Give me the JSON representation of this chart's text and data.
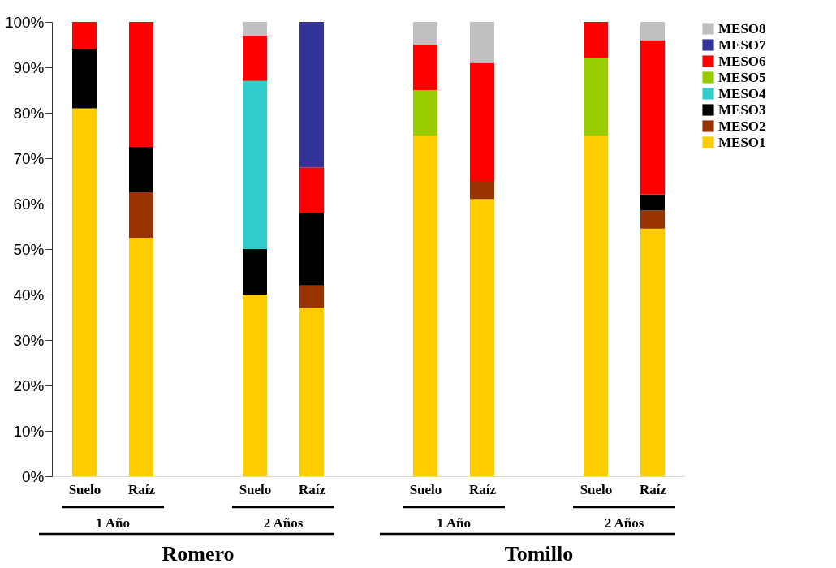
{
  "chart_data": {
    "type": "bar",
    "stacked": true,
    "categories": [
      "Suelo",
      "Raíz",
      null,
      "Suelo",
      "Raíz",
      null,
      "Suelo",
      "Raíz",
      null,
      "Suelo",
      "Raíz"
    ],
    "series": [
      {
        "name": "MESO1",
        "color": "#ffcc00",
        "values": [
          81,
          52.5,
          null,
          40,
          37,
          null,
          75,
          61,
          null,
          75,
          54.5
        ]
      },
      {
        "name": "MESO2",
        "color": "#993300",
        "values": [
          null,
          10,
          null,
          null,
          5,
          null,
          null,
          4,
          null,
          null,
          4
        ]
      },
      {
        "name": "MESO3",
        "color": "#000000",
        "values": [
          13,
          10,
          null,
          10,
          16,
          null,
          null,
          null,
          null,
          null,
          3.5
        ]
      },
      {
        "name": "MESO4",
        "color": "#33cccc",
        "values": [
          null,
          null,
          null,
          37,
          null,
          null,
          null,
          null,
          null,
          null,
          null
        ]
      },
      {
        "name": "MESO5",
        "color": "#99cc00",
        "values": [
          null,
          null,
          null,
          null,
          null,
          null,
          10,
          null,
          null,
          17,
          null
        ]
      },
      {
        "name": "MESO6",
        "color": "#ff0000",
        "values": [
          6,
          27.5,
          null,
          10,
          10,
          null,
          10,
          26,
          null,
          8,
          34
        ]
      },
      {
        "name": "MESO7",
        "color": "#333399",
        "values": [
          null,
          null,
          null,
          null,
          32,
          null,
          null,
          null,
          null,
          null,
          null
        ]
      },
      {
        "name": "MESO8",
        "color": "#c0c0c0",
        "values": [
          null,
          null,
          null,
          3,
          null,
          null,
          5,
          9,
          null,
          null,
          4
        ]
      }
    ],
    "ylim": [
      0,
      100
    ],
    "yticks": [
      {
        "value": 0,
        "label": "0%"
      },
      {
        "value": 10,
        "label": "10%"
      },
      {
        "value": 20,
        "label": "20%"
      },
      {
        "value": 30,
        "label": "30%"
      },
      {
        "value": 40,
        "label": "40%"
      },
      {
        "value": 50,
        "label": "50%"
      },
      {
        "value": 60,
        "label": "60%"
      },
      {
        "value": 70,
        "label": "70%"
      },
      {
        "value": 80,
        "label": "80%"
      },
      {
        "value": 90,
        "label": "90%"
      },
      {
        "value": 100,
        "label": "100%"
      }
    ],
    "grid": false,
    "legend": "right",
    "annotations": [
      "1 Año",
      "2 Años",
      "1 Año",
      "2 Años",
      "Romero",
      "Tomillo"
    ]
  }
}
